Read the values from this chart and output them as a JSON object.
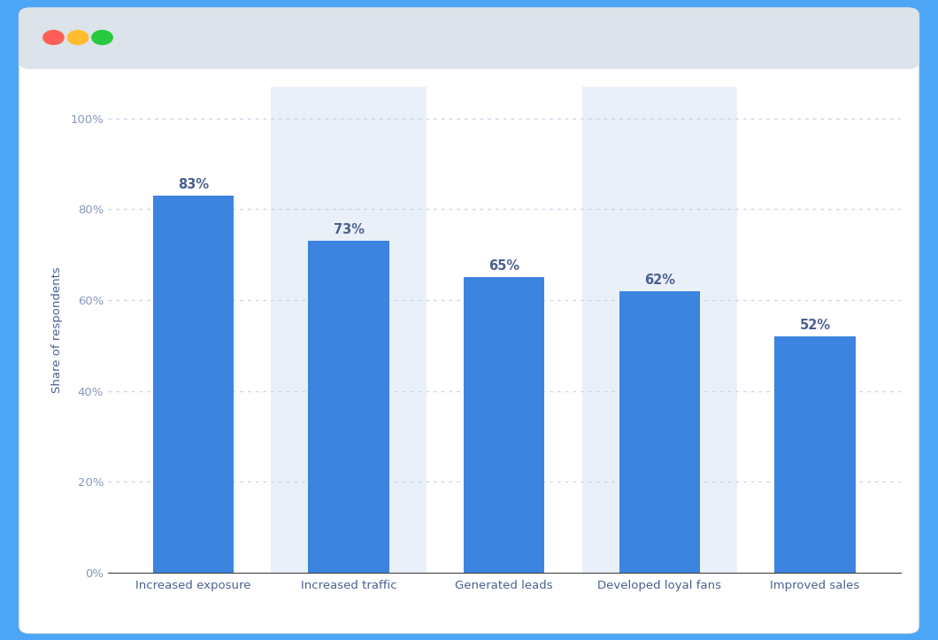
{
  "categories": [
    "Increased exposure",
    "Increased traffic",
    "Generated leads",
    "Developed loyal fans",
    "Improved sales"
  ],
  "values": [
    83,
    73,
    65,
    62,
    52
  ],
  "bar_color": "#3d84e0",
  "ylabel": "Share of respondents",
  "ytick_labels": [
    "0%",
    "20%",
    "40%",
    "60%",
    "80%",
    "100%"
  ],
  "ytick_values": [
    0,
    20,
    40,
    60,
    80,
    100
  ],
  "ylim": [
    0,
    107
  ],
  "label_color": "#4a6090",
  "tick_color": "#8899bb",
  "grid_color": "#c8d4e8",
  "outer_bg": "#4da6f5",
  "window_bg": "#ffffff",
  "chrome_bg": "#dde3ea",
  "chart_bg": "#ffffff",
  "bar_label_fontsize": 10.5,
  "axis_label_fontsize": 9.5,
  "tick_label_fontsize": 9.5,
  "ylabel_fontsize": 9.5,
  "highlight_cols": [
    1,
    3
  ],
  "highlight_color": "#eaf0f8"
}
